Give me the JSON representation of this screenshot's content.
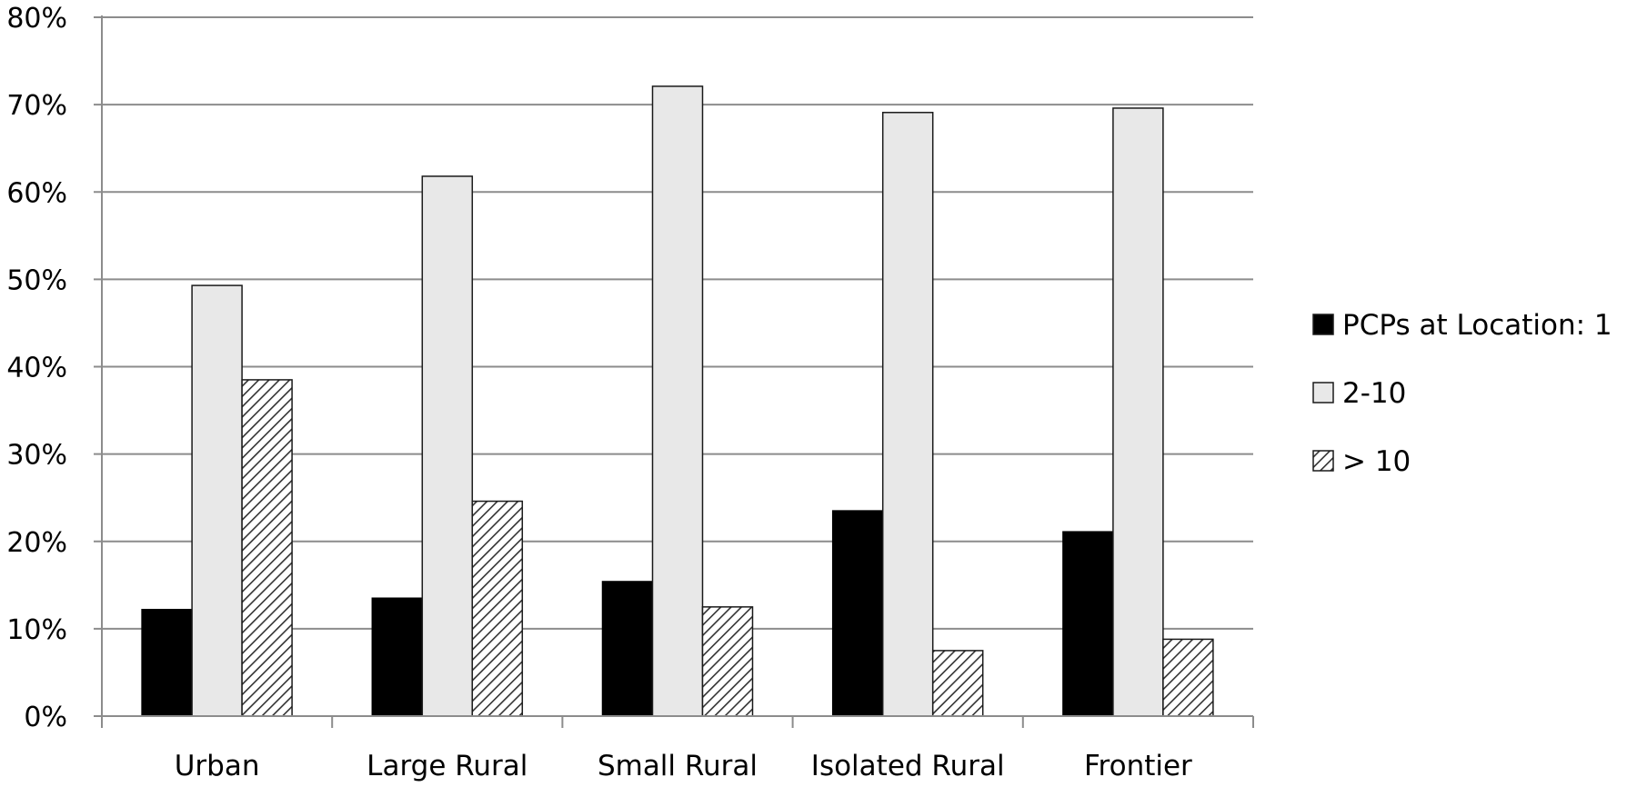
{
  "chart_data": {
    "type": "bar",
    "categories": [
      "Urban",
      "Large Rural",
      "Small Rural",
      "Isolated Rural",
      "Frontier"
    ],
    "series": [
      {
        "name": "PCPs at Location: 1",
        "values": [
          12.2,
          13.5,
          15.4,
          23.5,
          21.1
        ],
        "fill": "#000000",
        "pattern": "solid"
      },
      {
        "name": "2-10",
        "values": [
          49.3,
          61.8,
          72.1,
          69.1,
          69.6
        ],
        "fill": "#e8e8e8",
        "pattern": "solid"
      },
      {
        "name": "> 10",
        "values": [
          38.5,
          24.6,
          12.5,
          7.5,
          8.8
        ],
        "fill": "#ffffff",
        "pattern": "diagonal-hatch"
      }
    ],
    "y_ticks": [
      "0%",
      "10%",
      "20%",
      "30%",
      "40%",
      "50%",
      "60%",
      "70%",
      "80%"
    ],
    "ylim": [
      0,
      80
    ],
    "y_unit": "percent",
    "grid": true,
    "legend_position": "right",
    "title": "",
    "xlabel": "",
    "ylabel": ""
  }
}
